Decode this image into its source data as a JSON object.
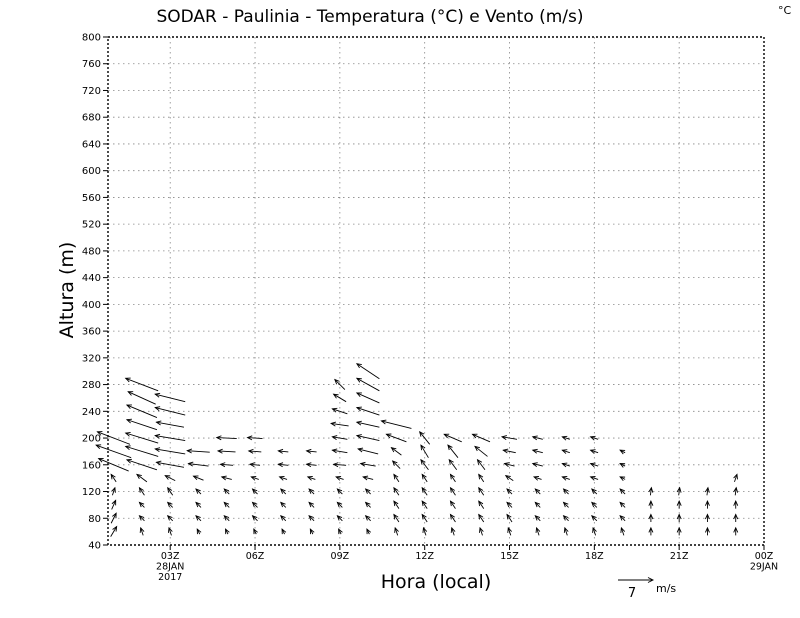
{
  "chart_data": {
    "type": "vector",
    "title": "SODAR - Paulinia - Temperatura (°C) e Vento (m/s)",
    "colorbar_unit": "°C",
    "xlabel": "Hora (local)",
    "ylabel": "Altura (m)",
    "x_unit": "hours since 28JAN2017 00Z",
    "xlim": [
      0.8,
      24
    ],
    "ylim": [
      40,
      800
    ],
    "y_ticks": [
      40,
      80,
      120,
      160,
      200,
      240,
      280,
      320,
      360,
      400,
      440,
      480,
      520,
      560,
      600,
      640,
      680,
      720,
      760,
      800
    ],
    "x_ticks": [
      {
        "hour": 3,
        "lines": [
          "03Z",
          "28JAN",
          "2017"
        ]
      },
      {
        "hour": 6,
        "lines": [
          "06Z"
        ]
      },
      {
        "hour": 9,
        "lines": [
          "09Z"
        ]
      },
      {
        "hour": 12,
        "lines": [
          "12Z"
        ]
      },
      {
        "hour": 15,
        "lines": [
          "15Z"
        ]
      },
      {
        "hour": 18,
        "lines": [
          "18Z"
        ]
      },
      {
        "hour": 21,
        "lines": [
          "21Z"
        ]
      },
      {
        "hour": 24,
        "lines": [
          "00Z",
          "29JAN"
        ]
      }
    ],
    "grid": true,
    "reference_vector": {
      "value": "7",
      "unit": "m/s",
      "magnitude": 7
    },
    "series": [
      {
        "hour": 1,
        "levels": [
          [
            60,
            1.2,
            2.0
          ],
          [
            80,
            1.0,
            2.0
          ],
          [
            100,
            0.8,
            1.8
          ],
          [
            120,
            0.5,
            1.5
          ],
          [
            140,
            -1.0,
            1.5
          ],
          [
            160,
            -6.0,
            2.5
          ],
          [
            180,
            -7.0,
            2.5
          ],
          [
            200,
            -6.5,
            2.5
          ]
        ]
      },
      {
        "hour": 2,
        "levels": [
          [
            60,
            -0.5,
            1.5
          ],
          [
            80,
            -1.0,
            1.0
          ],
          [
            100,
            -1.0,
            1.0
          ],
          [
            120,
            -1.0,
            1.5
          ],
          [
            140,
            -2.0,
            1.5
          ],
          [
            160,
            -6.0,
            2.0
          ],
          [
            180,
            -6.5,
            2.0
          ],
          [
            200,
            -6.5,
            2.0
          ],
          [
            220,
            -6.0,
            2.0
          ],
          [
            240,
            -6.0,
            2.5
          ],
          [
            260,
            -5.5,
            2.5
          ],
          [
            280,
            -6.5,
            2.5
          ]
        ]
      },
      {
        "hour": 3,
        "levels": [
          [
            60,
            -0.5,
            1.5
          ],
          [
            80,
            -1.0,
            1.0
          ],
          [
            100,
            -1.0,
            1.0
          ],
          [
            120,
            -1.0,
            1.5
          ],
          [
            140,
            -2.0,
            1.0
          ],
          [
            160,
            -5.5,
            1.0
          ],
          [
            180,
            -6.0,
            1.0
          ],
          [
            200,
            -6.0,
            1.0
          ],
          [
            220,
            -5.5,
            1.0
          ],
          [
            240,
            -6.0,
            1.5
          ],
          [
            260,
            -6.0,
            1.5
          ]
        ]
      },
      {
        "hour": 4,
        "levels": [
          [
            60,
            -0.5,
            1.0
          ],
          [
            80,
            -1.0,
            1.0
          ],
          [
            100,
            -1.0,
            1.0
          ],
          [
            120,
            -1.0,
            1.0
          ],
          [
            140,
            -2.0,
            0.8
          ],
          [
            160,
            -4.0,
            0.5
          ],
          [
            180,
            -4.5,
            0.3
          ]
        ]
      },
      {
        "hour": 5,
        "levels": [
          [
            60,
            -0.5,
            1.0
          ],
          [
            80,
            -1.0,
            1.0
          ],
          [
            100,
            -1.0,
            1.0
          ],
          [
            120,
            -1.0,
            1.0
          ],
          [
            140,
            -2.0,
            0.5
          ],
          [
            160,
            -2.5,
            0.2
          ],
          [
            180,
            -3.5,
            0.2
          ],
          [
            200,
            -4.0,
            0.2
          ]
        ]
      },
      {
        "hour": 6,
        "levels": [
          [
            60,
            -0.5,
            1.0
          ],
          [
            80,
            -1.0,
            1.0
          ],
          [
            100,
            -1.0,
            1.0
          ],
          [
            120,
            -1.0,
            1.0
          ],
          [
            140,
            -1.5,
            0.5
          ],
          [
            160,
            -2.0,
            0.2
          ],
          [
            180,
            -2.5,
            0.2
          ],
          [
            200,
            -3.0,
            0.2
          ]
        ]
      },
      {
        "hour": 7,
        "levels": [
          [
            60,
            -0.5,
            1.0
          ],
          [
            80,
            -1.0,
            1.0
          ],
          [
            100,
            -1.0,
            1.0
          ],
          [
            120,
            -1.0,
            1.0
          ],
          [
            140,
            -1.5,
            0.5
          ],
          [
            160,
            -2.0,
            0.2
          ],
          [
            180,
            -2.0,
            0.2
          ]
        ]
      },
      {
        "hour": 8,
        "levels": [
          [
            60,
            -0.5,
            1.0
          ],
          [
            80,
            -1.0,
            1.0
          ],
          [
            100,
            -1.0,
            1.0
          ],
          [
            120,
            -1.0,
            1.0
          ],
          [
            140,
            -1.5,
            0.5
          ],
          [
            160,
            -2.0,
            0.2
          ],
          [
            180,
            -2.0,
            0.2
          ]
        ]
      },
      {
        "hour": 9,
        "levels": [
          [
            60,
            -0.5,
            1.0
          ],
          [
            80,
            -1.0,
            1.0
          ],
          [
            100,
            -1.0,
            1.0
          ],
          [
            120,
            -1.0,
            1.0
          ],
          [
            140,
            -1.5,
            0.5
          ],
          [
            160,
            -2.5,
            0.2
          ],
          [
            180,
            -3.0,
            0.5
          ],
          [
            200,
            -3.0,
            0.5
          ],
          [
            220,
            -3.5,
            0.5
          ],
          [
            240,
            -3.0,
            1.0
          ],
          [
            260,
            -2.5,
            1.5
          ],
          [
            280,
            -2.0,
            2.0
          ]
        ]
      },
      {
        "hour": 10,
        "levels": [
          [
            60,
            -0.5,
            1.0
          ],
          [
            80,
            -1.0,
            1.0
          ],
          [
            100,
            -1.0,
            1.0
          ],
          [
            120,
            -1.0,
            1.0
          ],
          [
            140,
            -2.0,
            0.5
          ],
          [
            160,
            -3.0,
            0.5
          ],
          [
            180,
            -4.0,
            1.0
          ],
          [
            200,
            -4.5,
            1.0
          ],
          [
            220,
            -4.5,
            1.0
          ],
          [
            240,
            -4.5,
            1.5
          ],
          [
            260,
            -4.5,
            2.0
          ],
          [
            280,
            -4.5,
            2.5
          ],
          [
            300,
            -4.5,
            3.0
          ]
        ]
      },
      {
        "hour": 11,
        "levels": [
          [
            60,
            -0.5,
            1.5
          ],
          [
            80,
            -1.0,
            1.5
          ],
          [
            100,
            -1.0,
            1.5
          ],
          [
            120,
            -1.0,
            1.5
          ],
          [
            140,
            -1.0,
            1.5
          ],
          [
            160,
            -1.5,
            1.5
          ],
          [
            180,
            -2.0,
            1.5
          ],
          [
            200,
            -4.0,
            1.5
          ],
          [
            220,
            -6.0,
            1.5
          ]
        ]
      },
      {
        "hour": 12,
        "levels": [
          [
            60,
            -0.5,
            1.5
          ],
          [
            80,
            -1.0,
            1.5
          ],
          [
            100,
            -1.0,
            1.5
          ],
          [
            120,
            -1.0,
            1.5
          ],
          [
            140,
            -1.0,
            1.5
          ],
          [
            160,
            -1.5,
            2.0
          ],
          [
            180,
            -1.5,
            2.5
          ],
          [
            200,
            -2.0,
            2.5
          ]
        ]
      },
      {
        "hour": 13,
        "levels": [
          [
            60,
            -0.5,
            1.5
          ],
          [
            80,
            -1.0,
            1.5
          ],
          [
            100,
            -1.0,
            1.5
          ],
          [
            120,
            -1.0,
            1.5
          ],
          [
            140,
            -1.0,
            1.5
          ],
          [
            160,
            -1.5,
            2.0
          ],
          [
            180,
            -2.0,
            2.5
          ],
          [
            200,
            -3.5,
            1.5
          ]
        ]
      },
      {
        "hour": 14,
        "levels": [
          [
            60,
            -0.5,
            1.5
          ],
          [
            80,
            -1.0,
            1.5
          ],
          [
            100,
            -1.0,
            1.5
          ],
          [
            120,
            -1.0,
            1.5
          ],
          [
            140,
            -1.0,
            1.5
          ],
          [
            160,
            -1.5,
            2.0
          ],
          [
            180,
            -2.5,
            2.0
          ],
          [
            200,
            -3.5,
            1.5
          ]
        ]
      },
      {
        "hour": 15,
        "levels": [
          [
            60,
            -0.5,
            1.5
          ],
          [
            80,
            -1.0,
            1.5
          ],
          [
            100,
            -1.0,
            1.0
          ],
          [
            120,
            -1.0,
            1.0
          ],
          [
            140,
            -1.5,
            1.0
          ],
          [
            160,
            -2.0,
            0.5
          ],
          [
            180,
            -2.5,
            0.5
          ],
          [
            200,
            -3.0,
            0.5
          ]
        ]
      },
      {
        "hour": 16,
        "levels": [
          [
            60,
            -0.5,
            1.5
          ],
          [
            80,
            -1.0,
            1.0
          ],
          [
            100,
            -1.0,
            1.0
          ],
          [
            120,
            -1.0,
            1.0
          ],
          [
            140,
            -1.5,
            0.5
          ],
          [
            160,
            -2.0,
            0.5
          ],
          [
            180,
            -2.0,
            0.5
          ],
          [
            200,
            -2.0,
            0.5
          ]
        ]
      },
      {
        "hour": 17,
        "levels": [
          [
            60,
            -0.5,
            1.5
          ],
          [
            80,
            -1.0,
            1.0
          ],
          [
            100,
            -1.0,
            1.0
          ],
          [
            120,
            -1.0,
            1.0
          ],
          [
            140,
            -1.5,
            0.5
          ],
          [
            160,
            -1.5,
            0.5
          ],
          [
            180,
            -1.5,
            0.5
          ],
          [
            200,
            -1.5,
            0.5
          ]
        ]
      },
      {
        "hour": 18,
        "levels": [
          [
            60,
            -0.5,
            1.5
          ],
          [
            80,
            -1.0,
            1.0
          ],
          [
            100,
            -1.0,
            1.0
          ],
          [
            120,
            -1.0,
            1.0
          ],
          [
            140,
            -1.5,
            0.5
          ],
          [
            160,
            -1.5,
            0.5
          ],
          [
            180,
            -1.5,
            0.5
          ],
          [
            200,
            -1.5,
            0.5
          ]
        ]
      },
      {
        "hour": 19,
        "levels": [
          [
            60,
            -0.5,
            1.5
          ],
          [
            80,
            -1.0,
            1.0
          ],
          [
            100,
            -1.0,
            1.0
          ],
          [
            120,
            -1.0,
            1.0
          ],
          [
            140,
            -1.0,
            0.5
          ],
          [
            160,
            -1.0,
            0.5
          ],
          [
            180,
            -1.0,
            0.5
          ]
        ]
      },
      {
        "hour": 20,
        "levels": [
          [
            60,
            0.0,
            1.5
          ],
          [
            80,
            0.0,
            1.5
          ],
          [
            100,
            0.0,
            1.5
          ],
          [
            120,
            0.2,
            1.5
          ]
        ]
      },
      {
        "hour": 21,
        "levels": [
          [
            60,
            0.0,
            1.5
          ],
          [
            80,
            0.0,
            1.5
          ],
          [
            100,
            0.0,
            1.5
          ],
          [
            120,
            0.2,
            1.5
          ]
        ]
      },
      {
        "hour": 22,
        "levels": [
          [
            60,
            0.0,
            1.5
          ],
          [
            80,
            0.0,
            1.5
          ],
          [
            100,
            0.0,
            1.5
          ],
          [
            120,
            0.2,
            1.5
          ]
        ]
      },
      {
        "hour": 23,
        "levels": [
          [
            60,
            0.0,
            1.5
          ],
          [
            80,
            0.0,
            1.5
          ],
          [
            100,
            0.0,
            1.5
          ],
          [
            120,
            0.2,
            1.5
          ],
          [
            140,
            0.5,
            1.5
          ]
        ]
      }
    ]
  }
}
